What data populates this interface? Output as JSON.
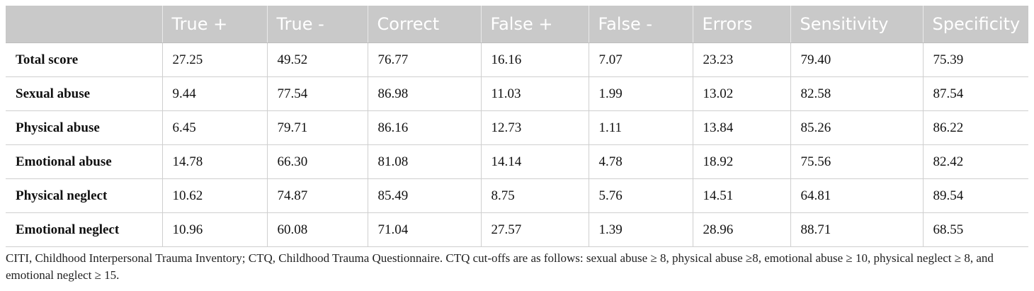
{
  "table": {
    "headers": [
      "",
      "True +",
      "True -",
      "Correct",
      "False +",
      "False -",
      "Errors",
      "Sensitivity",
      "Specificity"
    ],
    "rows": [
      [
        "Total score",
        "27.25",
        "49.52",
        "76.77",
        "16.16",
        "7.07",
        "23.23",
        "79.40",
        "75.39"
      ],
      [
        "Sexual abuse",
        "9.44",
        "77.54",
        "86.98",
        "11.03",
        "1.99",
        "13.02",
        "82.58",
        "87.54"
      ],
      [
        "Physical abuse",
        "6.45",
        "79.71",
        "86.16",
        "12.73",
        "1.11",
        "13.84",
        "85.26",
        "86.22"
      ],
      [
        "Emotional abuse",
        "14.78",
        "66.30",
        "81.08",
        "14.14",
        "4.78",
        "18.92",
        "75.56",
        "82.42"
      ],
      [
        "Physical neglect",
        "10.62",
        "74.87",
        "85.49",
        "8.75",
        "5.76",
        "14.51",
        "64.81",
        "89.54"
      ],
      [
        "Emotional neglect",
        "10.96",
        "60.08",
        "71.04",
        "27.57",
        "1.39",
        "28.96",
        "88.71",
        "68.55"
      ]
    ]
  },
  "footnote": "CITI, Childhood Interpersonal Trauma Inventory; CTQ, Childhood Trauma Questionnaire. CTQ cut-offs are as follows: sexual abuse ≥ 8, physical abuse ≥8, emotional abuse ≥ 10, physical neglect ≥ 8, and emotional neglect ≥ 15.",
  "colors": {
    "header_bg": "#c9c9c9",
    "header_text": "#ffffff",
    "grid": "#cfcfcf"
  }
}
